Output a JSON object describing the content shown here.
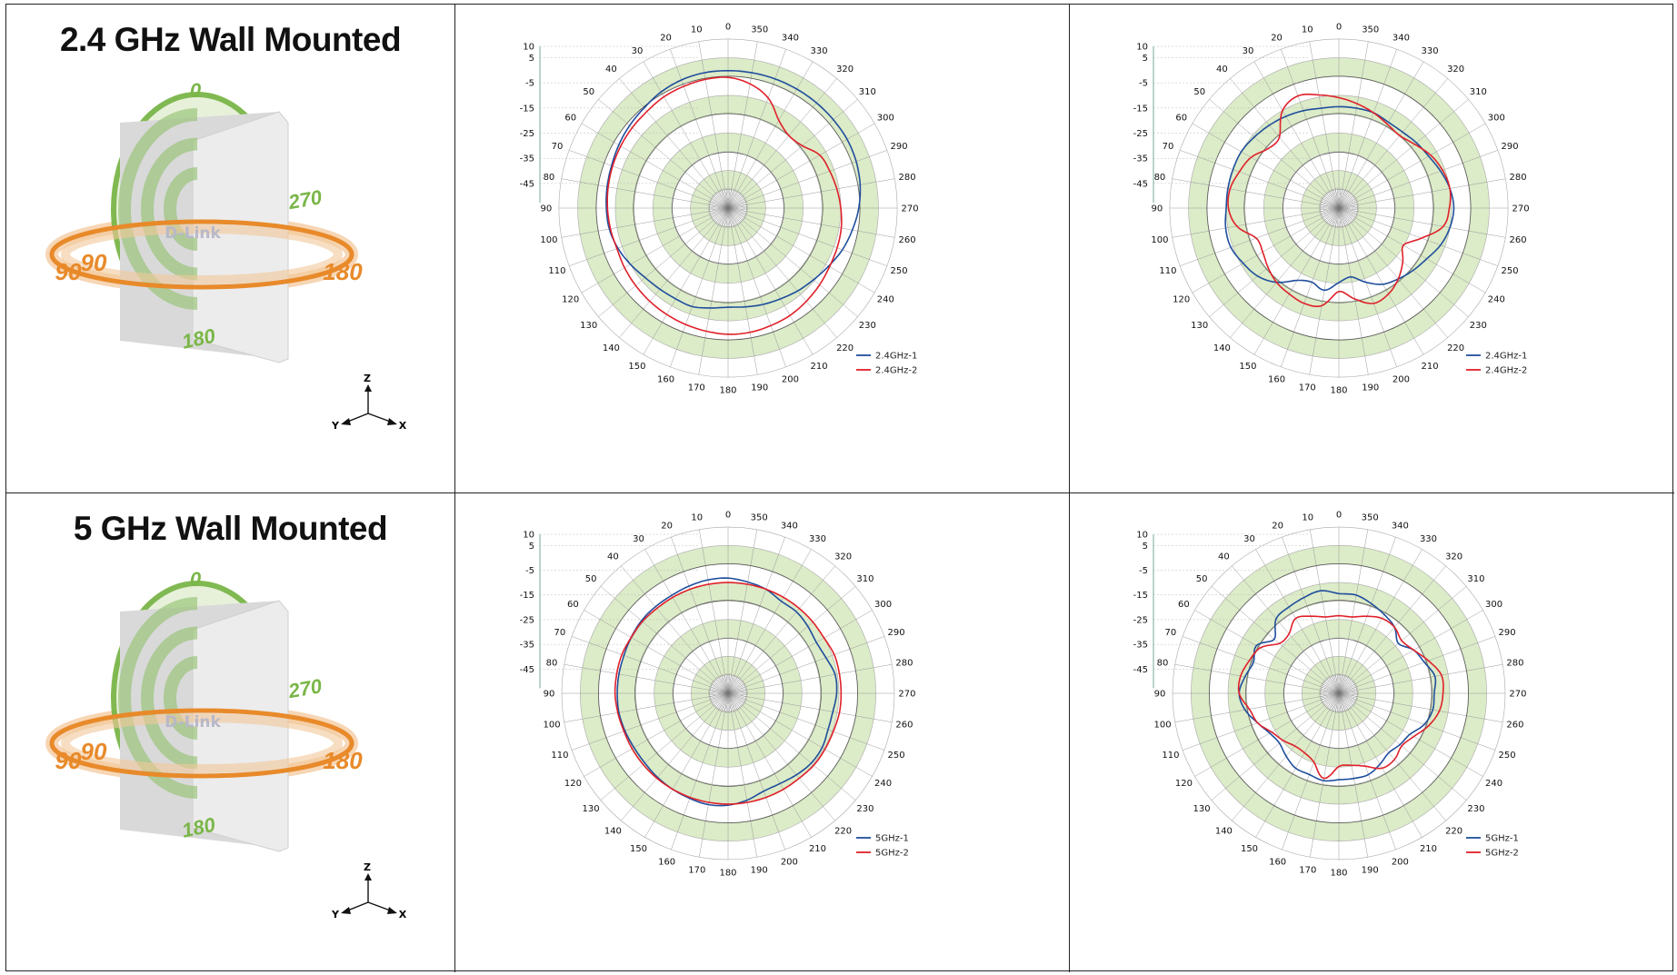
{
  "rows": [
    {
      "title": "2.4 GHz Wall Mounted",
      "pattern_labels": {
        "top": "0",
        "right": "270",
        "left": "90",
        "bottom": "180",
        "left2": "90",
        "right2": "180"
      },
      "logo_text": "D-Link",
      "axes_labels": {
        "z": "Z",
        "y": "Y",
        "x": "X"
      }
    },
    {
      "title": "5 GHz Wall Mounted",
      "pattern_labels": {
        "top": "0",
        "right": "270",
        "left": "90",
        "bottom": "180",
        "left2": "90",
        "right2": "180"
      },
      "logo_text": "D-Link",
      "axes_labels": {
        "z": "Z",
        "y": "Y",
        "x": "X"
      }
    }
  ],
  "colors": {
    "series1": "#1f4e9c",
    "series2": "#e0202a",
    "ring": "#dcebc8",
    "grid": "#555555",
    "green": "#7ab648",
    "orange": "#e88a2a"
  },
  "chart_data": [
    {
      "type": "polar",
      "title": "",
      "angle_ticks": [
        "0",
        "10",
        "20",
        "30",
        "40",
        "50",
        "60",
        "70",
        "80",
        "90",
        "100",
        "110",
        "120",
        "130",
        "140",
        "150",
        "160",
        "170",
        "180",
        "190",
        "200",
        "210",
        "220",
        "230",
        "240",
        "250",
        "260",
        "270",
        "280",
        "290",
        "300",
        "310",
        "320",
        "330",
        "340",
        "350"
      ],
      "radial_ticks": [
        "10",
        "5",
        "-5",
        "-15",
        "-25",
        "-35",
        "-45"
      ],
      "rlim": [
        -45,
        10
      ],
      "angle_step": 10,
      "series": [
        {
          "name": "2.4GHz-1",
          "color": "#1f4e9c",
          "values": [
            8,
            8,
            7.5,
            6.5,
            5,
            4,
            3,
            2,
            1.5,
            1,
            0.5,
            -1,
            -3,
            -5,
            -6,
            -6.5,
            -6.5,
            -8,
            -9,
            -8.5,
            -7.5,
            -6.5,
            -5,
            -3.5,
            -1.5,
            1,
            3,
            5,
            6.5,
            7.5,
            8,
            8,
            8,
            8,
            8,
            8
          ]
        },
        {
          "name": "2.4GHz-2",
          "color": "#e0202a",
          "values": [
            5,
            5,
            4.5,
            4,
            3,
            2.5,
            2,
            1.5,
            1,
            0.5,
            0,
            -0.5,
            0,
            0.5,
            1,
            1.5,
            2,
            2.5,
            3,
            3,
            2.5,
            2,
            1,
            0,
            -1,
            -1.5,
            -2,
            -3,
            -4,
            -5,
            -6,
            -10,
            -11,
            -8,
            -1,
            3
          ]
        }
      ]
    },
    {
      "type": "polar",
      "title": "",
      "angle_ticks": [
        "0",
        "10",
        "20",
        "30",
        "40",
        "50",
        "60",
        "70",
        "80",
        "90",
        "100",
        "110",
        "120",
        "130",
        "140",
        "150",
        "160",
        "170",
        "180",
        "190",
        "200",
        "210",
        "220",
        "230",
        "240",
        "250",
        "260",
        "270",
        "280",
        "290",
        "300",
        "310",
        "320",
        "330",
        "340",
        "350"
      ],
      "radial_ticks": [
        "10",
        "5",
        "-5",
        "-15",
        "-25",
        "-35",
        "-45"
      ],
      "rlim": [
        -45,
        10
      ],
      "angle_step": 10,
      "series": [
        {
          "name": "2.4GHz-1",
          "color": "#1f4e9c",
          "values": [
            -8,
            -8,
            -7,
            -6,
            -5,
            -4,
            -3,
            -3,
            -3,
            -3,
            -2,
            -2,
            -4,
            -6,
            -10,
            -16,
            -18,
            -16,
            -20,
            -22,
            -18,
            -14,
            -12,
            -10,
            -8,
            -5,
            -3,
            -2,
            -3,
            -5,
            -7,
            -8,
            -9,
            -9,
            -8,
            -8
          ]
        },
        {
          "name": "2.4GHz-2",
          "color": "#e0202a",
          "values": [
            -4,
            -2,
            0,
            -3,
            -12,
            -12,
            -8,
            -6,
            -4,
            -4,
            -7,
            -14,
            -14,
            -12,
            -10,
            -9,
            -8,
            -9,
            -16,
            -12,
            -8,
            -9,
            -12,
            -16,
            -20,
            -14,
            -6,
            -4,
            -3,
            -4,
            -6,
            -9,
            -11,
            -10,
            -8,
            -6
          ]
        }
      ]
    },
    {
      "type": "polar",
      "title": "",
      "angle_ticks": [
        "0",
        "10",
        "20",
        "30",
        "40",
        "50",
        "60",
        "70",
        "80",
        "90",
        "100",
        "110",
        "120",
        "130",
        "140",
        "150",
        "160",
        "170",
        "180",
        "190",
        "200",
        "210",
        "220",
        "230",
        "240",
        "250",
        "260",
        "270",
        "280",
        "290",
        "300",
        "310",
        "320",
        "330",
        "340",
        "350"
      ],
      "radial_ticks": [
        "10",
        "5",
        "-5",
        "-15",
        "-25",
        "-35",
        "-45"
      ],
      "rlim": [
        -45,
        10
      ],
      "angle_step": 10,
      "series": [
        {
          "name": "5GHz-1",
          "color": "#1f4e9c",
          "values": [
            -1,
            -1,
            -1.5,
            -2,
            -2,
            -2,
            -2.5,
            -3,
            -3,
            -3,
            -3,
            -3.5,
            -4,
            -4,
            -3.5,
            -3,
            -2.5,
            -2,
            -2.5,
            -4,
            -6,
            -6,
            -5,
            -4,
            -4,
            -5,
            -5,
            -4,
            -4,
            -6,
            -7,
            -6,
            -5,
            -5,
            -3,
            -2
          ]
        },
        {
          "name": "5GHz-2",
          "color": "#e0202a",
          "values": [
            -3,
            -3,
            -3,
            -3,
            -3,
            -2.5,
            -2.5,
            -2,
            -2,
            -2,
            -2.5,
            -3,
            -3,
            -3,
            -3,
            -3,
            -3,
            -3,
            -3,
            -3,
            -3,
            -3,
            -3,
            -2.5,
            -2.5,
            -2.5,
            -2,
            -2,
            -2,
            -2,
            -3,
            -3,
            -3,
            -3,
            -3,
            -3
          ]
        }
      ]
    },
    {
      "type": "polar",
      "title": "",
      "angle_ticks": [
        "0",
        "10",
        "20",
        "30",
        "40",
        "50",
        "60",
        "70",
        "80",
        "90",
        "100",
        "110",
        "120",
        "130",
        "140",
        "150",
        "160",
        "170",
        "180",
        "190",
        "200",
        "210",
        "220",
        "230",
        "240",
        "250",
        "260",
        "270",
        "280",
        "290",
        "300",
        "310",
        "320",
        "330",
        "340",
        "350"
      ],
      "radial_ticks": [
        "10",
        "5",
        "-5",
        "-15",
        "-25",
        "-35",
        "-45"
      ],
      "rlim": [
        -45,
        10
      ],
      "angle_step": 10,
      "series": [
        {
          "name": "5GHz-1",
          "color": "#1f4e9c",
          "values": [
            -8,
            -6,
            -7,
            -8,
            -9,
            -15,
            -10,
            -12,
            -10,
            -8,
            -10,
            -14,
            -17,
            -18,
            -16,
            -14,
            -14,
            -13,
            -14,
            -14,
            -14,
            -16,
            -18,
            -17,
            -16,
            -12,
            -10,
            -10,
            -9,
            -12,
            -14,
            -18,
            -14,
            -12,
            -10,
            -8
          ]
        },
        {
          "name": "5GHz-2",
          "color": "#e0202a",
          "values": [
            -18,
            -18,
            -16,
            -14,
            -18,
            -18,
            -12,
            -10,
            -8,
            -8,
            -12,
            -14,
            -18,
            -20,
            -22,
            -22,
            -20,
            -14,
            -20,
            -20,
            -18,
            -14,
            -14,
            -16,
            -14,
            -10,
            -7,
            -6,
            -6,
            -10,
            -14,
            -16,
            -14,
            -14,
            -16,
            -18
          ]
        }
      ]
    }
  ]
}
